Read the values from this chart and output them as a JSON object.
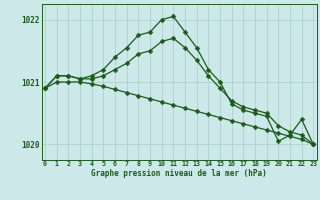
{
  "title": "Graphe pression niveau de la mer (hPa)",
  "background_color": "#cce8e8",
  "grid_color": "#aacccc",
  "line_color": "#1a5c1a",
  "hours": [
    0,
    1,
    2,
    3,
    4,
    5,
    6,
    7,
    8,
    9,
    10,
    11,
    12,
    13,
    14,
    15,
    16,
    17,
    18,
    19,
    20,
    21,
    22,
    23
  ],
  "series1": [
    1020.9,
    1021.1,
    1021.1,
    1021.05,
    1021.1,
    1021.2,
    1021.4,
    1021.55,
    1021.75,
    1021.8,
    1022.0,
    1022.05,
    1021.8,
    1021.55,
    1021.2,
    1021.0,
    1020.65,
    1020.55,
    1020.5,
    1020.45,
    1020.05,
    1020.15,
    1020.4,
    1020.0
  ],
  "series2": [
    1020.9,
    1021.1,
    1021.1,
    1021.05,
    1021.05,
    1021.1,
    1021.2,
    1021.3,
    1021.45,
    1021.5,
    1021.65,
    1021.7,
    1021.55,
    1021.35,
    1021.1,
    1020.9,
    1020.7,
    1020.6,
    1020.55,
    1020.5,
    1020.3,
    1020.2,
    1020.15,
    1020.0
  ],
  "series3": [
    1020.9,
    1021.0,
    1021.0,
    1021.0,
    1020.97,
    1020.93,
    1020.88,
    1020.83,
    1020.78,
    1020.73,
    1020.68,
    1020.63,
    1020.58,
    1020.53,
    1020.48,
    1020.43,
    1020.38,
    1020.33,
    1020.28,
    1020.23,
    1020.18,
    1020.13,
    1020.08,
    1020.0
  ],
  "ylim": [
    1019.75,
    1022.25
  ],
  "yticks": [
    1020,
    1021,
    1022
  ],
  "markersize": 2.5
}
